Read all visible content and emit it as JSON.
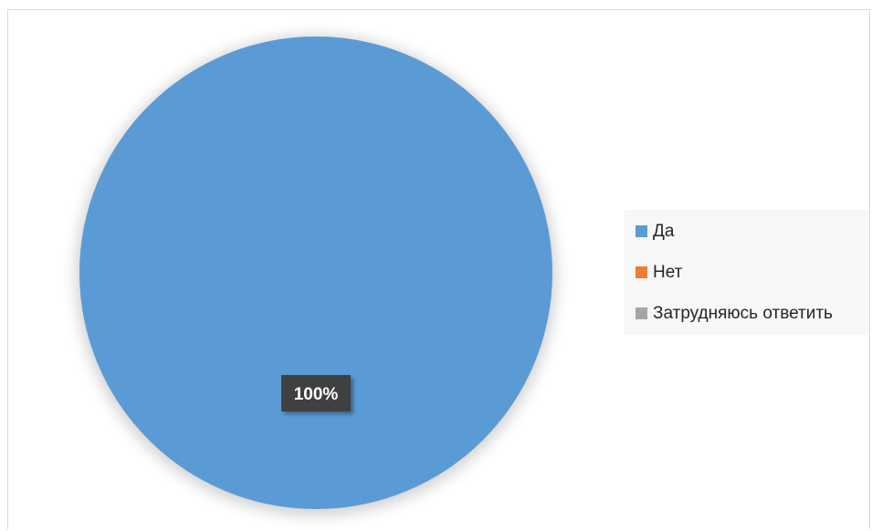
{
  "chart_data": {
    "type": "pie",
    "categories": [
      "Да",
      "Нет",
      "Затрудняюсь ответить"
    ],
    "values": [
      100,
      0,
      0
    ],
    "colors": [
      "#5b9bd5",
      "#ed7d31",
      "#a5a5a5"
    ],
    "data_labels": [
      "100%",
      "",
      ""
    ],
    "legend_position": "right"
  }
}
